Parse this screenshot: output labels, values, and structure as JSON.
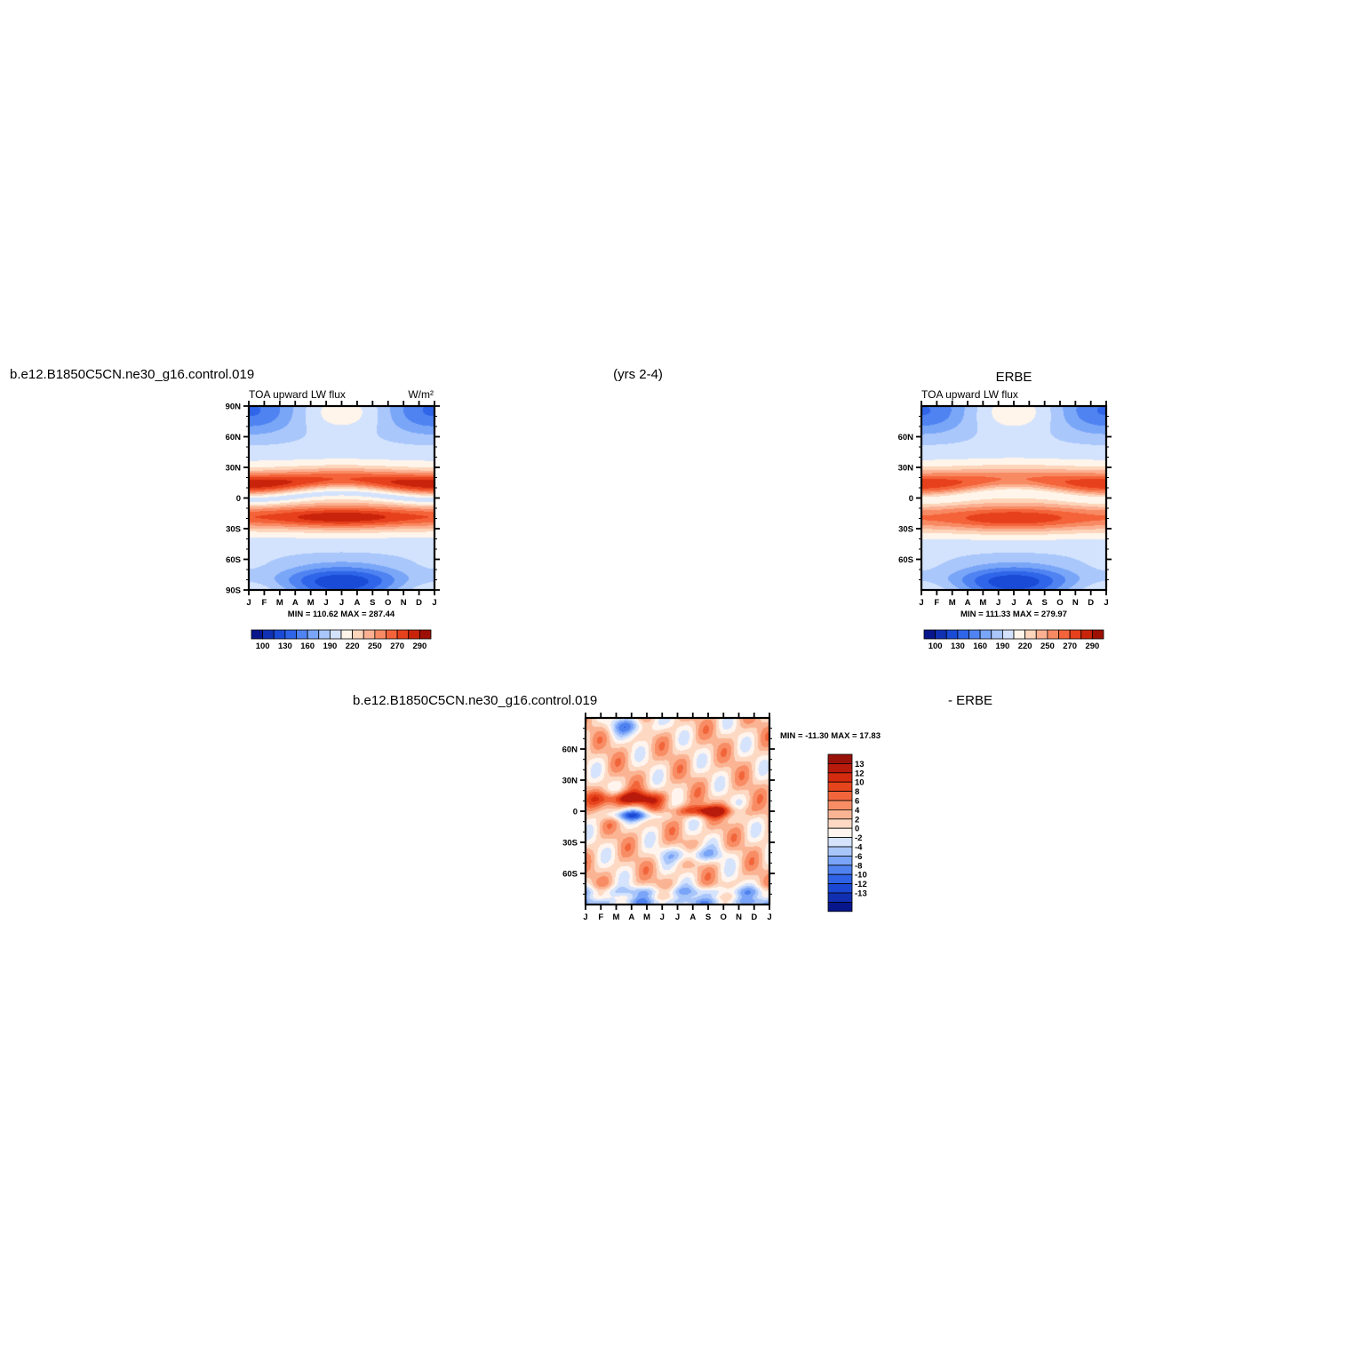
{
  "header": {
    "case_name": "b.e12.B1850C5CN.ne30_g16.control.019",
    "years": "(yrs 2-4)",
    "obs_title": "ERBE",
    "diff_case_name": "b.e12.B1850C5CN.ne30_g16.control.019",
    "diff_suffix": "- ERBE"
  },
  "chart_data": [
    {
      "id": "model",
      "type": "heatmap",
      "title": "TOA upward LW flux",
      "units": "W/m²",
      "x": [
        "J",
        "F",
        "M",
        "A",
        "M",
        "J",
        "J",
        "A",
        "S",
        "O",
        "N",
        "D",
        "J"
      ],
      "y_ticks": [
        "90N",
        "60N",
        "30N",
        "0",
        "30S",
        "60S",
        "90S"
      ],
      "y_values": [
        90,
        60,
        30,
        0,
        -30,
        -60,
        -90
      ],
      "ylim": [
        -90,
        90
      ],
      "stats": "MIN = 110.62 MAX = 287.44",
      "colorbar_labels": [
        "100",
        "130",
        "160",
        "190",
        "220",
        "250",
        "270",
        "290"
      ],
      "field": "features: peak NH subtropics (~15N) ~285 in Jan/Dec, peak SH subtropics (~20S) ~285 in Jul, minima ~110 at poles in local winter"
    },
    {
      "id": "obs",
      "type": "heatmap",
      "title": "TOA upward LW flux",
      "units": "",
      "x": [
        "J",
        "F",
        "M",
        "A",
        "M",
        "J",
        "J",
        "A",
        "S",
        "O",
        "N",
        "D",
        "J"
      ],
      "y_ticks": [
        "60N",
        "30N",
        "0",
        "30S",
        "60S"
      ],
      "y_values": [
        60,
        30,
        0,
        -30,
        -60
      ],
      "ylim": [
        -90,
        90
      ],
      "stats": "MIN = 111.33 MAX = 279.97",
      "colorbar_labels": [
        "100",
        "130",
        "160",
        "190",
        "220",
        "250",
        "270",
        "290"
      ]
    },
    {
      "id": "diff",
      "type": "heatmap",
      "title": "",
      "x": [
        "J",
        "F",
        "M",
        "A",
        "M",
        "J",
        "J",
        "A",
        "S",
        "O",
        "N",
        "D",
        "J"
      ],
      "y_ticks": [
        "60N",
        "30N",
        "0",
        "30S",
        "60S"
      ],
      "y_values": [
        60,
        30,
        0,
        -30,
        -60
      ],
      "ylim": [
        -90,
        90
      ],
      "stats": "MIN = -11.30 MAX =  17.83",
      "colorbar_labels": [
        "13",
        "12",
        "10",
        "8",
        "6",
        "4",
        "2",
        "0",
        "-2",
        "-4",
        "-6",
        "-8",
        "-10",
        "-12",
        "-13"
      ]
    }
  ],
  "colors": {
    "abs_palette": [
      "#08168c",
      "#1131b4",
      "#1a4bd6",
      "#2f65e8",
      "#4f83f1",
      "#7aa6f8",
      "#a9c7fb",
      "#d4e3fd",
      "#fff5ea",
      "#fdd5bb",
      "#fbb092",
      "#f88a63",
      "#f4633a",
      "#e6411c",
      "#c9240b",
      "#9e1005"
    ],
    "diff_palette": [
      "#98120a",
      "#b81a0c",
      "#d42b0e",
      "#e6441c",
      "#f2653b",
      "#f88d65",
      "#fbb493",
      "#fdd9c4",
      "#fff5ee",
      "#d5e3fd",
      "#a9c6fb",
      "#7aa4f7",
      "#5082ef",
      "#2f63e6",
      "#1a48d3",
      "#1130b1",
      "#08168b"
    ]
  }
}
